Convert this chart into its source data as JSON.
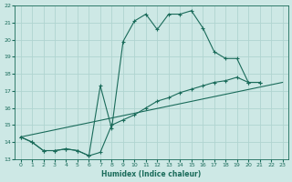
{
  "title": "",
  "xlabel": "Humidex (Indice chaleur)",
  "ylabel": "",
  "xlim": [
    -0.5,
    23.5
  ],
  "ylim": [
    13,
    22
  ],
  "yticks": [
    13,
    14,
    15,
    16,
    17,
    18,
    19,
    20,
    21,
    22
  ],
  "xticks": [
    0,
    1,
    2,
    3,
    4,
    5,
    6,
    7,
    8,
    9,
    10,
    11,
    12,
    13,
    14,
    15,
    16,
    17,
    18,
    19,
    20,
    21,
    22,
    23
  ],
  "line_color": "#1a6b5a",
  "bg_color": "#cde8e5",
  "grid_color": "#b0d4d0",
  "marker": "+",
  "line1_x": [
    0,
    1,
    2,
    3,
    4,
    5,
    6,
    7,
    8,
    9,
    10,
    11,
    12,
    13,
    14,
    15,
    16,
    17,
    18,
    19,
    20,
    21,
    22,
    23
  ],
  "line1_y": [
    14.3,
    14.0,
    13.5,
    13.5,
    13.6,
    13.5,
    13.2,
    17.3,
    14.8,
    19.9,
    21.1,
    21.5,
    20.6,
    21.5,
    21.5,
    21.7,
    20.7,
    19.3,
    18.9,
    18.9,
    17.5,
    17.5,
    null,
    null
  ],
  "line2_x": [
    0,
    1,
    2,
    3,
    4,
    5,
    6,
    7,
    8,
    9,
    10,
    11,
    12,
    13,
    14,
    15,
    16,
    17,
    18,
    19,
    20,
    21,
    22,
    23
  ],
  "line2_y": [
    14.3,
    14.0,
    13.5,
    13.5,
    13.6,
    13.5,
    13.2,
    13.4,
    15.0,
    15.3,
    15.6,
    16.0,
    16.4,
    16.6,
    16.9,
    17.1,
    17.3,
    17.5,
    17.6,
    17.8,
    17.5,
    17.5,
    null,
    null
  ],
  "line3_x": [
    0,
    23
  ],
  "line3_y": [
    14.3,
    17.5
  ]
}
